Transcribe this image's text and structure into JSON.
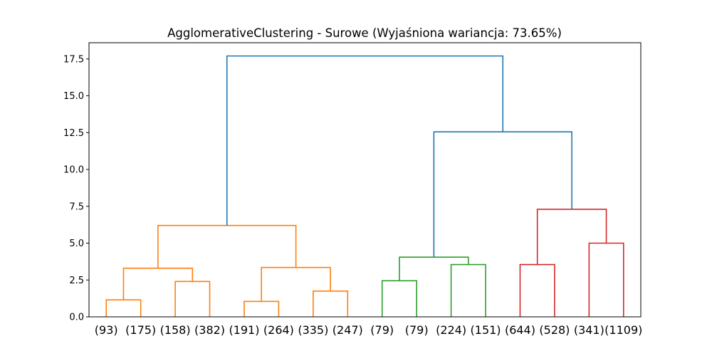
{
  "chart_data": {
    "type": "dendrogram",
    "title": "AgglomerativeClustering - Surowe (Wyjaśniona wariancja: 73.65%)",
    "xlabel": "",
    "ylabel": "",
    "ylim": [
      0,
      18.6
    ],
    "yticks": [
      0.0,
      2.5,
      5.0,
      7.5,
      10.0,
      12.5,
      15.0,
      17.5
    ],
    "ytick_labels": [
      "0.0",
      "2.5",
      "5.0",
      "7.5",
      "10.0",
      "12.5",
      "15.0",
      "17.5"
    ],
    "grid": false,
    "leaves": [
      "(93)",
      "(175)",
      "(158)",
      "(382)",
      "(191)",
      "(264)",
      "(335)",
      "(247)",
      "(79)",
      "(79)",
      "(224)",
      "(151)",
      "(644)",
      "(528)",
      "(341)",
      "(1109)"
    ],
    "colors": {
      "orange": "#ff7f0e",
      "green": "#2ca02c",
      "red": "#d62728",
      "blue": "#1f77b4"
    },
    "merges": [
      {
        "left": 0,
        "right": 1,
        "height": 1.15,
        "color": "orange"
      },
      {
        "left": 2,
        "right": 3,
        "height": 2.4,
        "color": "orange"
      },
      {
        "left": 4,
        "right": 5,
        "height": 1.05,
        "color": "orange"
      },
      {
        "left": 6,
        "right": 7,
        "height": 1.75,
        "color": "orange"
      },
      {
        "left": 8,
        "right": 9,
        "height": 2.45,
        "color": "green"
      },
      {
        "left": 10,
        "right": 11,
        "height": 3.55,
        "color": "green"
      },
      {
        "left": 12,
        "right": 13,
        "height": 3.55,
        "color": "red"
      },
      {
        "left": 14,
        "right": 15,
        "height": 5.0,
        "color": "red"
      },
      {
        "left": 16,
        "right": 17,
        "height": 3.3,
        "color": "orange"
      },
      {
        "left": 18,
        "right": 19,
        "height": 3.35,
        "color": "orange"
      },
      {
        "left": 20,
        "right": 21,
        "height": 4.05,
        "color": "green"
      },
      {
        "left": 22,
        "right": 23,
        "height": 7.3,
        "color": "red"
      },
      {
        "left": 24,
        "right": 25,
        "height": 6.2,
        "color": "orange"
      },
      {
        "left": 26,
        "right": 27,
        "height": 12.55,
        "color": "blue"
      },
      {
        "left": 28,
        "right": 29,
        "height": 17.7,
        "color": "blue"
      }
    ]
  }
}
